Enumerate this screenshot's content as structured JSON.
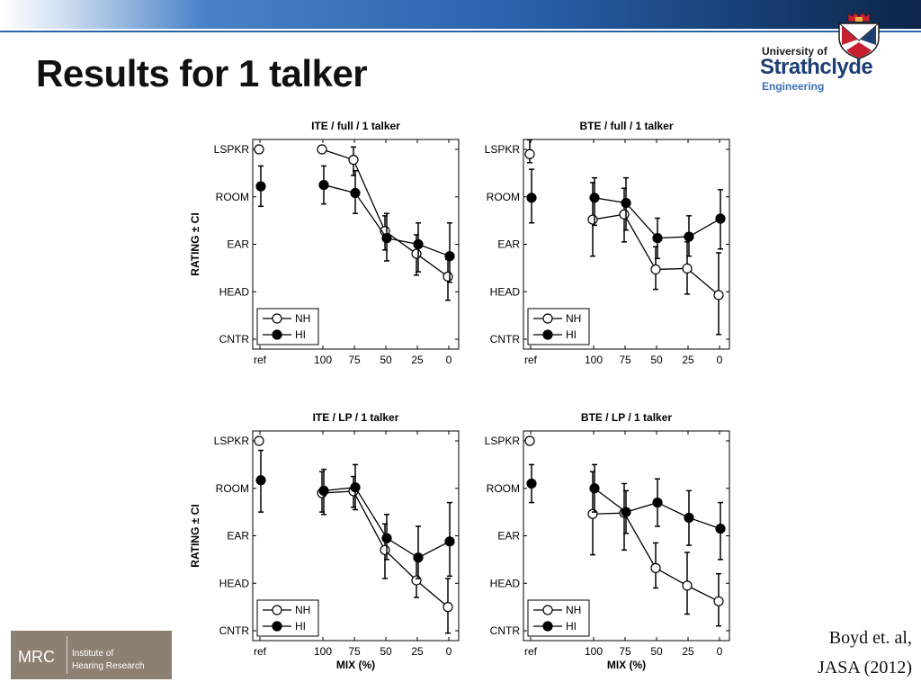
{
  "slide": {
    "title": "Results for 1 talker"
  },
  "logo": {
    "line1": "University of",
    "line2": "Strathclyde",
    "line3": "Engineering"
  },
  "footer_logo": {
    "abbr": "MRC",
    "line1": "Institute of",
    "line2": "Hearing Research"
  },
  "citation": {
    "line1": "Boyd et. al,",
    "line2": "JASA (2012)"
  },
  "colors": {
    "topbar_accent": "#2a63ac",
    "logo_text": "#1d3f73"
  },
  "chart_data": [
    {
      "type": "line",
      "title": "ITE / full / 1 talker",
      "xlabel": "",
      "ylabel": "RATING ± CI",
      "categories": [
        "ref",
        "100",
        "75",
        "50",
        "25",
        "0"
      ],
      "y_ticks": [
        "CNTR",
        "HEAD",
        "EAR",
        "ROOM",
        "LSPKR"
      ],
      "ylim": [
        1,
        5
      ],
      "legend": "bottom-left",
      "series": [
        {
          "name": "NH",
          "marker": "open-circle",
          "values": [
            5.0,
            5.0,
            4.78,
            3.28,
            2.8,
            2.32
          ],
          "ci_low": [
            null,
            null,
            4.45,
            2.88,
            2.35,
            1.82
          ],
          "ci_high": [
            null,
            null,
            5.05,
            3.6,
            3.2,
            2.68
          ]
        },
        {
          "name": "HI",
          "marker": "filled-circle",
          "values": [
            4.22,
            4.25,
            4.08,
            3.13,
            3.0,
            2.75
          ],
          "ci_low": [
            3.8,
            3.85,
            3.65,
            2.65,
            2.42,
            2.2
          ],
          "ci_high": [
            4.65,
            4.65,
            4.55,
            3.65,
            3.45,
            3.45
          ]
        }
      ]
    },
    {
      "type": "line",
      "title": "BTE / full / 1 talker",
      "xlabel": "",
      "ylabel": "",
      "categories": [
        "ref",
        "100",
        "75",
        "50",
        "25",
        "0"
      ],
      "y_ticks": [
        "CNTR",
        "HEAD",
        "EAR",
        "ROOM",
        "LSPKR"
      ],
      "ylim": [
        1,
        5
      ],
      "legend": "bottom-left",
      "series": [
        {
          "name": "NH",
          "marker": "open-circle",
          "values": [
            4.9,
            3.52,
            3.63,
            2.47,
            2.49,
            1.93
          ],
          "ci_low": [
            4.72,
            2.75,
            3.05,
            2.05,
            1.95,
            1.1
          ],
          "ci_high": [
            5.2,
            4.3,
            4.18,
            2.95,
            3.05,
            2.82
          ]
        },
        {
          "name": "HI",
          "marker": "filled-circle",
          "values": [
            3.98,
            3.98,
            3.87,
            3.13,
            3.16,
            3.54
          ],
          "ci_low": [
            3.45,
            3.4,
            3.3,
            2.7,
            2.75,
            2.9
          ],
          "ci_high": [
            4.58,
            4.4,
            4.4,
            3.55,
            3.6,
            4.15
          ]
        }
      ]
    },
    {
      "type": "line",
      "title": "ITE / LP / 1 talker",
      "xlabel": "MIX (%)",
      "ylabel": "RATING ± CI",
      "categories": [
        "ref",
        "100",
        "75",
        "50",
        "25",
        "0"
      ],
      "y_ticks": [
        "CNTR",
        "HEAD",
        "EAR",
        "ROOM",
        "LSPKR"
      ],
      "ylim": [
        1,
        5
      ],
      "legend": "bottom-left",
      "series": [
        {
          "name": "NH",
          "marker": "open-circle",
          "values": [
            5.0,
            3.9,
            3.94,
            2.7,
            2.06,
            1.5
          ],
          "ci_low": [
            null,
            3.5,
            3.6,
            2.1,
            1.7,
            0.95
          ],
          "ci_high": [
            null,
            4.35,
            4.25,
            3.25,
            2.5,
            2.1
          ]
        },
        {
          "name": "HI",
          "marker": "filled-circle",
          "values": [
            4.17,
            3.95,
            4.02,
            2.95,
            2.54,
            2.88
          ],
          "ci_low": [
            3.5,
            3.45,
            3.55,
            2.5,
            2.1,
            2.15
          ],
          "ci_high": [
            4.8,
            4.4,
            4.5,
            3.45,
            3.2,
            3.7
          ]
        }
      ]
    },
    {
      "type": "line",
      "title": "BTE / LP / 1 talker",
      "xlabel": "MIX (%)",
      "ylabel": "",
      "categories": [
        "ref",
        "100",
        "75",
        "50",
        "25",
        "0"
      ],
      "y_ticks": [
        "CNTR",
        "HEAD",
        "EAR",
        "ROOM",
        "LSPKR"
      ],
      "ylim": [
        1,
        5
      ],
      "legend": "bottom-left",
      "series": [
        {
          "name": "NH",
          "marker": "open-circle",
          "values": [
            5.0,
            3.46,
            3.48,
            2.32,
            1.95,
            1.62
          ],
          "ci_low": [
            null,
            2.6,
            2.7,
            1.9,
            1.35,
            1.1
          ],
          "ci_high": [
            null,
            4.35,
            4.1,
            2.85,
            2.65,
            2.2
          ]
        },
        {
          "name": "HI",
          "marker": "filled-circle",
          "values": [
            4.1,
            4.0,
            3.5,
            3.7,
            3.38,
            3.15
          ],
          "ci_low": [
            3.7,
            3.5,
            3.05,
            3.2,
            2.8,
            2.5
          ],
          "ci_high": [
            4.5,
            4.5,
            3.95,
            4.2,
            3.95,
            3.7
          ]
        }
      ]
    }
  ]
}
